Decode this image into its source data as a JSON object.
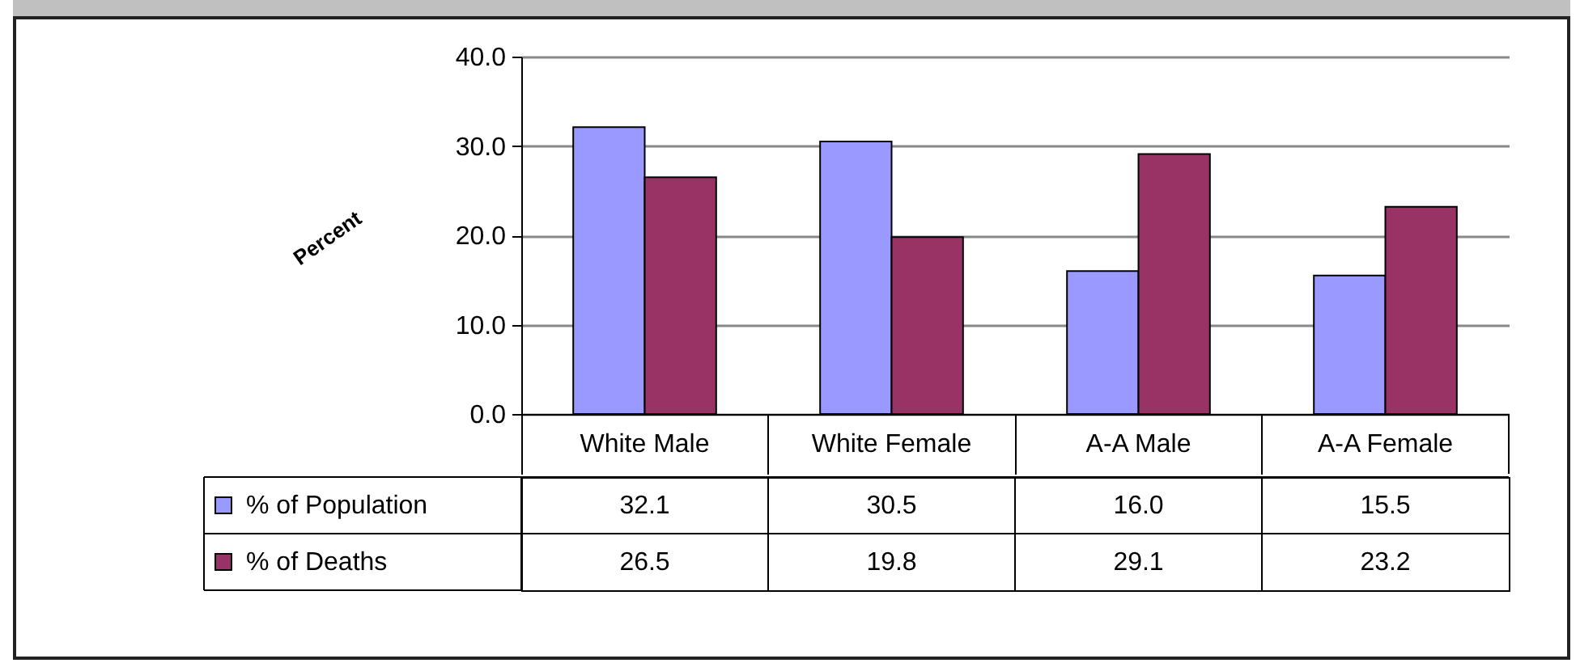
{
  "chart_data": {
    "type": "bar",
    "ylabel": "Percent",
    "categories": [
      "White Male",
      "White Female",
      "A-A Male",
      "A-A Female"
    ],
    "series": [
      {
        "name": "% of  Population",
        "color": "#9999ff",
        "values": [
          32.1,
          30.5,
          16.0,
          15.5
        ],
        "value_labels": [
          "32.1",
          "30.5",
          "16.0",
          "15.5"
        ]
      },
      {
        "name": "% of Deaths",
        "color": "#993366",
        "values": [
          26.5,
          19.8,
          29.1,
          23.2
        ],
        "value_labels": [
          "26.5",
          "19.8",
          "29.1",
          "23.2"
        ]
      }
    ],
    "ylim": [
      0,
      40
    ],
    "yticks": [
      {
        "value": 0,
        "label": "0.0"
      },
      {
        "value": 10,
        "label": "10.0"
      },
      {
        "value": 20,
        "label": "20.0"
      },
      {
        "value": 30,
        "label": "30.0"
      },
      {
        "value": 40,
        "label": "40.0"
      }
    ],
    "grid": "y",
    "legend": "bottom left"
  }
}
